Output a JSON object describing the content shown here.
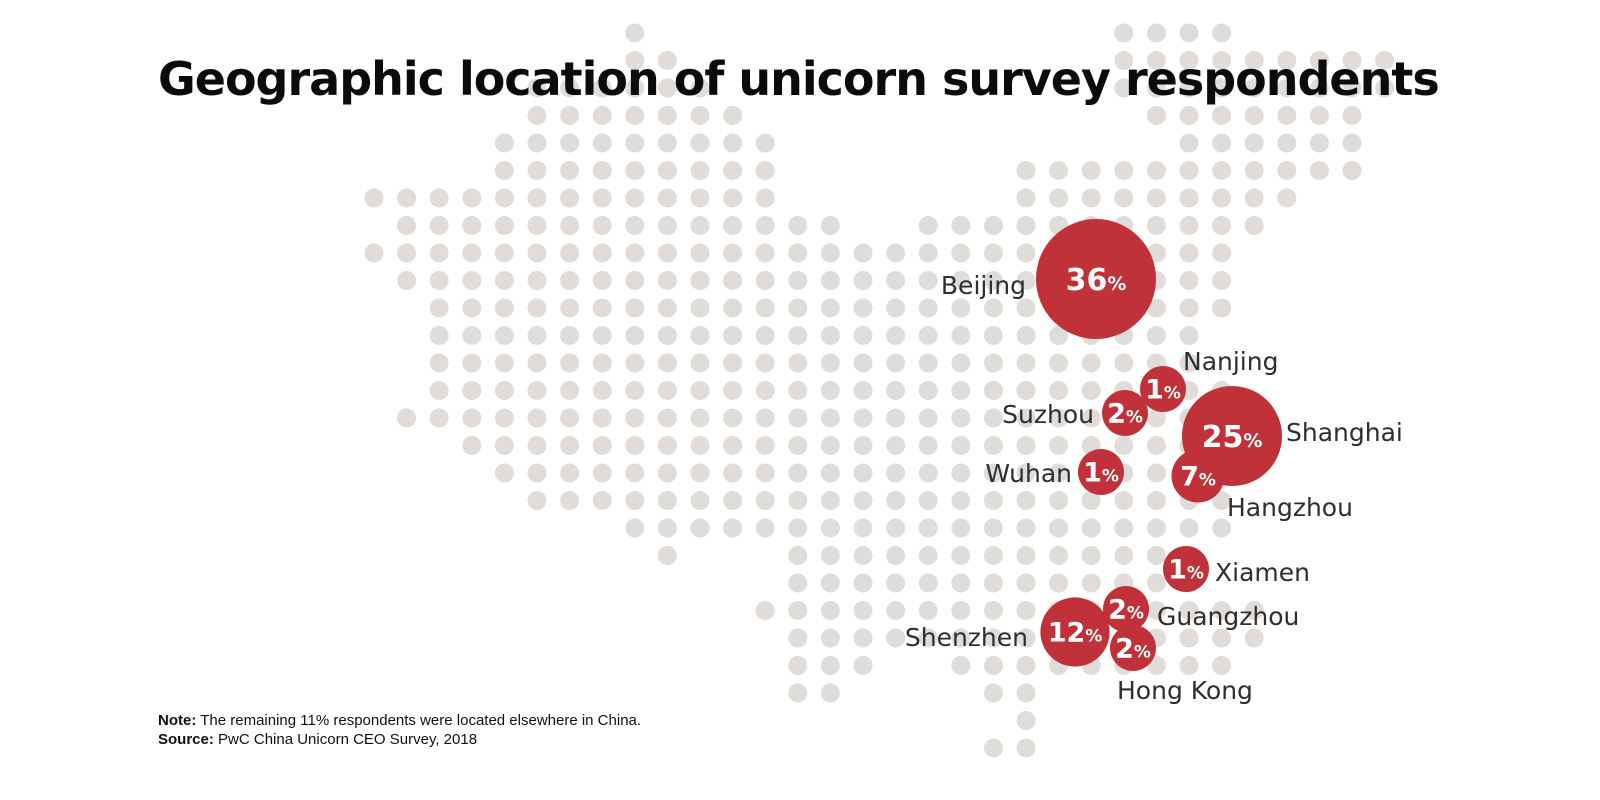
{
  "title": "Geographic location of unicorn survey respondents",
  "note_label": "Note:",
  "note_text": "The remaining 11% respondents were located elsewhere in China.",
  "source_label": "Source:",
  "source_text": "PwC China Unicorn CEO Survey, 2018",
  "colors": {
    "bubble": "#c0313a",
    "map_dot": "#e0dcd9",
    "label": "#2e2e2e"
  },
  "chart_data": {
    "type": "bubble-map",
    "unit": "%",
    "cities": [
      {
        "name": "Beijing",
        "value": 36
      },
      {
        "name": "Shanghai",
        "value": 25
      },
      {
        "name": "Shenzhen",
        "value": 12
      },
      {
        "name": "Hangzhou",
        "value": 7
      },
      {
        "name": "Suzhou",
        "value": 2
      },
      {
        "name": "Guangzhou",
        "value": 2
      },
      {
        "name": "Hong Kong",
        "value": 2
      },
      {
        "name": "Nanjing",
        "value": 1
      },
      {
        "name": "Wuhan",
        "value": 1
      },
      {
        "name": "Xiamen",
        "value": 1
      }
    ]
  }
}
